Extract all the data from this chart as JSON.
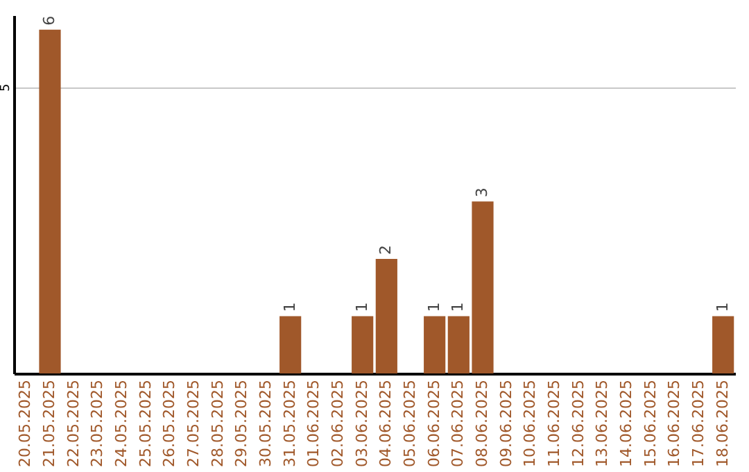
{
  "chart_data": {
    "type": "bar",
    "categories": [
      "20.05.2025",
      "21.05.2025",
      "22.05.2025",
      "23.05.2025",
      "24.05.2025",
      "25.05.2025",
      "26.05.2025",
      "27.05.2025",
      "28.05.2025",
      "29.05.2025",
      "30.05.2025",
      "31.05.2025",
      "01.06.2025",
      "02.06.2025",
      "03.06.2025",
      "04.06.2025",
      "05.06.2025",
      "06.06.2025",
      "07.06.2025",
      "08.06.2025",
      "09.06.2025",
      "10.06.2025",
      "11.06.2025",
      "12.06.2025",
      "13.06.2025",
      "14.06.2025",
      "15.06.2025",
      "16.06.2025",
      "17.06.2025",
      "18.06.2025"
    ],
    "values": [
      0,
      6,
      0,
      0,
      0,
      0,
      0,
      0,
      0,
      0,
      0,
      1,
      0,
      0,
      1,
      2,
      0,
      1,
      1,
      3,
      0,
      0,
      0,
      0,
      0,
      0,
      0,
      0,
      0,
      1
    ],
    "value_labels": [
      null,
      "6",
      null,
      null,
      null,
      null,
      null,
      null,
      null,
      null,
      null,
      "1",
      null,
      null,
      "1",
      "2",
      null,
      "1",
      "1",
      "3",
      null,
      null,
      null,
      null,
      null,
      null,
      null,
      null,
      null,
      "1"
    ],
    "color": "#a0582a",
    "ylim": [
      0,
      6.25
    ],
    "yticks": [
      5
    ],
    "grid": "y"
  }
}
